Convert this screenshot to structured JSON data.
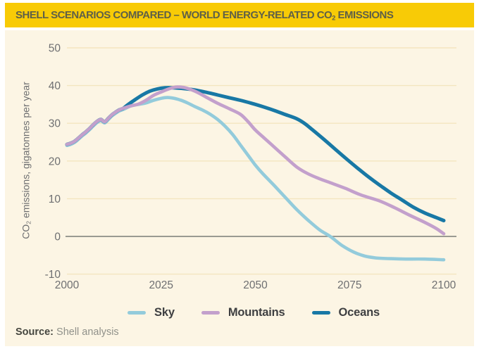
{
  "banner": {
    "title_pre": "SHELL SCENARIOS COMPARED – WORLD ENERGY-RELATED CO",
    "title_sub": "2",
    "title_post": " EMISSIONS",
    "bg_color": "#F8CB06",
    "text_color": "#5F6048"
  },
  "ylabel": {
    "pre": "CO",
    "sub": "2",
    "post": " emissions, gigatonnes per year"
  },
  "source": {
    "label": "Source:",
    "text": " Shell analysis"
  },
  "colors": {
    "panel_bg": "#FCF5E4",
    "gridline": "#F3E5BF",
    "zero_line": "#8C8D87",
    "tick_text": "#6E6F71",
    "sky": "#93CBDB",
    "mountains": "#C3A0CC",
    "oceans": "#1878A5"
  },
  "chart_data": {
    "type": "line",
    "title": "SHELL SCENARIOS COMPARED – WORLD ENERGY-RELATED CO₂ EMISSIONS",
    "xlabel": "",
    "ylabel": "CO₂ emissions, gigatonnes per year",
    "xlim": [
      2000,
      2100
    ],
    "ylim": [
      -10,
      50
    ],
    "xticks": [
      2000,
      2025,
      2050,
      2075,
      2100
    ],
    "yticks": [
      50,
      40,
      30,
      20,
      10,
      0,
      -10
    ],
    "grid": "horizontal",
    "zero_line": true,
    "legend_position": "bottom",
    "source": "Shell analysis",
    "series": [
      {
        "name": "Sky",
        "color": "#93CBDB",
        "width": 4.6,
        "points": [
          [
            2000,
            24.1
          ],
          [
            2001,
            24.4
          ],
          [
            2002,
            24.9
          ],
          [
            2003,
            25.7
          ],
          [
            2004,
            26.6
          ],
          [
            2005,
            27.4
          ],
          [
            2006,
            28.3
          ],
          [
            2007,
            29.3
          ],
          [
            2008,
            30.2
          ],
          [
            2009,
            30.7
          ],
          [
            2010,
            30.1
          ],
          [
            2011,
            31.0
          ],
          [
            2012,
            32.0
          ],
          [
            2013,
            32.7
          ],
          [
            2014,
            33.3
          ],
          [
            2015,
            33.7
          ],
          [
            2017,
            34.6
          ],
          [
            2019,
            35.0
          ],
          [
            2021,
            35.4
          ],
          [
            2023,
            36.1
          ],
          [
            2026,
            36.8
          ],
          [
            2028,
            36.7
          ],
          [
            2030,
            36.2
          ],
          [
            2032,
            35.4
          ],
          [
            2034,
            34.4
          ],
          [
            2036,
            33.5
          ],
          [
            2038,
            32.4
          ],
          [
            2040,
            31.0
          ],
          [
            2042,
            29.2
          ],
          [
            2044,
            27.0
          ],
          [
            2046,
            24.3
          ],
          [
            2048,
            21.6
          ],
          [
            2050,
            18.9
          ],
          [
            2052,
            16.6
          ],
          [
            2055,
            13.5
          ],
          [
            2058,
            10.3
          ],
          [
            2061,
            7.1
          ],
          [
            2064,
            4.3
          ],
          [
            2067,
            1.8
          ],
          [
            2070,
            -0.1
          ],
          [
            2073,
            -2.4
          ],
          [
            2076,
            -4.1
          ],
          [
            2079,
            -5.2
          ],
          [
            2082,
            -5.7
          ],
          [
            2086,
            -5.9
          ],
          [
            2090,
            -6.0
          ],
          [
            2095,
            -6.0
          ],
          [
            2100,
            -6.2
          ]
        ]
      },
      {
        "name": "Mountains",
        "color": "#C3A0CC",
        "width": 4.6,
        "points": [
          [
            2000,
            24.4
          ],
          [
            2001,
            24.7
          ],
          [
            2002,
            25.2
          ],
          [
            2003,
            26.0
          ],
          [
            2004,
            26.9
          ],
          [
            2005,
            27.7
          ],
          [
            2006,
            28.6
          ],
          [
            2007,
            29.6
          ],
          [
            2008,
            30.5
          ],
          [
            2009,
            31.0
          ],
          [
            2010,
            30.4
          ],
          [
            2011,
            31.3
          ],
          [
            2012,
            32.3
          ],
          [
            2013,
            33.0
          ],
          [
            2014,
            33.6
          ],
          [
            2015,
            34.0
          ],
          [
            2017,
            34.6
          ],
          [
            2019,
            35.1
          ],
          [
            2021,
            36.1
          ],
          [
            2023,
            37.4
          ],
          [
            2025,
            38.3
          ],
          [
            2027,
            39.1
          ],
          [
            2029,
            39.6
          ],
          [
            2031,
            39.5
          ],
          [
            2033,
            38.9
          ],
          [
            2035,
            38.0
          ],
          [
            2037,
            36.9
          ],
          [
            2040,
            35.3
          ],
          [
            2043,
            33.9
          ],
          [
            2046,
            32.4
          ],
          [
            2048,
            30.5
          ],
          [
            2050,
            28.2
          ],
          [
            2052,
            26.4
          ],
          [
            2054,
            24.6
          ],
          [
            2056,
            22.8
          ],
          [
            2058,
            21.0
          ],
          [
            2061,
            18.4
          ],
          [
            2064,
            16.6
          ],
          [
            2067,
            15.3
          ],
          [
            2070,
            14.2
          ],
          [
            2074,
            12.7
          ],
          [
            2078,
            11.0
          ],
          [
            2083,
            9.4
          ],
          [
            2087,
            7.6
          ],
          [
            2091,
            5.6
          ],
          [
            2095,
            3.7
          ],
          [
            2098,
            2.1
          ],
          [
            2100,
            0.7
          ]
        ]
      },
      {
        "name": "Oceans",
        "color": "#1878A5",
        "width": 5.0,
        "points": [
          [
            2000,
            24.4
          ],
          [
            2001,
            24.7
          ],
          [
            2002,
            25.2
          ],
          [
            2003,
            26.0
          ],
          [
            2004,
            26.9
          ],
          [
            2005,
            27.7
          ],
          [
            2006,
            28.6
          ],
          [
            2007,
            29.6
          ],
          [
            2008,
            30.5
          ],
          [
            2009,
            31.0
          ],
          [
            2010,
            30.4
          ],
          [
            2011,
            31.3
          ],
          [
            2012,
            32.3
          ],
          [
            2013,
            33.0
          ],
          [
            2014,
            33.6
          ],
          [
            2015,
            34.0
          ],
          [
            2016,
            34.8
          ],
          [
            2018,
            36.2
          ],
          [
            2020,
            37.5
          ],
          [
            2022,
            38.5
          ],
          [
            2024,
            39.1
          ],
          [
            2026,
            39.4
          ],
          [
            2028,
            39.4
          ],
          [
            2030,
            39.3
          ],
          [
            2032,
            39.1
          ],
          [
            2034,
            38.8
          ],
          [
            2037,
            38.2
          ],
          [
            2040,
            37.5
          ],
          [
            2043,
            36.8
          ],
          [
            2046,
            36.1
          ],
          [
            2049,
            35.3
          ],
          [
            2052,
            34.4
          ],
          [
            2055,
            33.4
          ],
          [
            2058,
            32.3
          ],
          [
            2061,
            31.2
          ],
          [
            2063,
            30.0
          ],
          [
            2065,
            28.4
          ],
          [
            2068,
            25.9
          ],
          [
            2071,
            23.3
          ],
          [
            2074,
            20.7
          ],
          [
            2077,
            18.2
          ],
          [
            2080,
            15.8
          ],
          [
            2083,
            13.6
          ],
          [
            2086,
            11.5
          ],
          [
            2089,
            9.6
          ],
          [
            2092,
            7.7
          ],
          [
            2095,
            6.2
          ],
          [
            2098,
            5.0
          ],
          [
            2100,
            4.2
          ]
        ]
      }
    ]
  }
}
